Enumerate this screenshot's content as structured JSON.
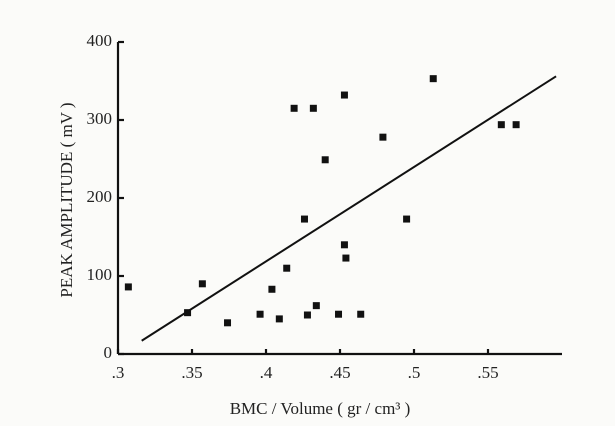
{
  "chart_data": {
    "type": "scatter",
    "xlabel": "BMC / Volume ( gr / cm³ )",
    "ylabel": "PEAK AMPLITUDE ( mV )",
    "x": [
      0.307,
      0.347,
      0.357,
      0.374,
      0.396,
      0.404,
      0.409,
      0.414,
      0.419,
      0.426,
      0.432,
      0.428,
      0.434,
      0.44,
      0.449,
      0.453,
      0.454,
      0.453,
      0.464,
      0.479,
      0.495,
      0.513,
      0.559,
      0.569
    ],
    "values": [
      86,
      53,
      90,
      40,
      51,
      83,
      45,
      110,
      315,
      173,
      315,
      50,
      62,
      249,
      51,
      140,
      123,
      332,
      51,
      278,
      173,
      353,
      294,
      294
    ],
    "color": "#111111",
    "trendline": {
      "x": [
        0.316,
        0.596
      ],
      "y": [
        17,
        356
      ]
    },
    "xlim": [
      0.3,
      0.6
    ],
    "ylim": [
      0,
      400
    ],
    "xticks": [
      {
        "value": 0.3,
        "label": ".3"
      },
      {
        "value": 0.35,
        "label": ".35"
      },
      {
        "value": 0.4,
        "label": ".4"
      },
      {
        "value": 0.45,
        "label": ".45"
      },
      {
        "value": 0.5,
        "label": ".5"
      },
      {
        "value": 0.55,
        "label": ".55"
      }
    ],
    "yticks": [
      0,
      100,
      200,
      300,
      400
    ]
  }
}
